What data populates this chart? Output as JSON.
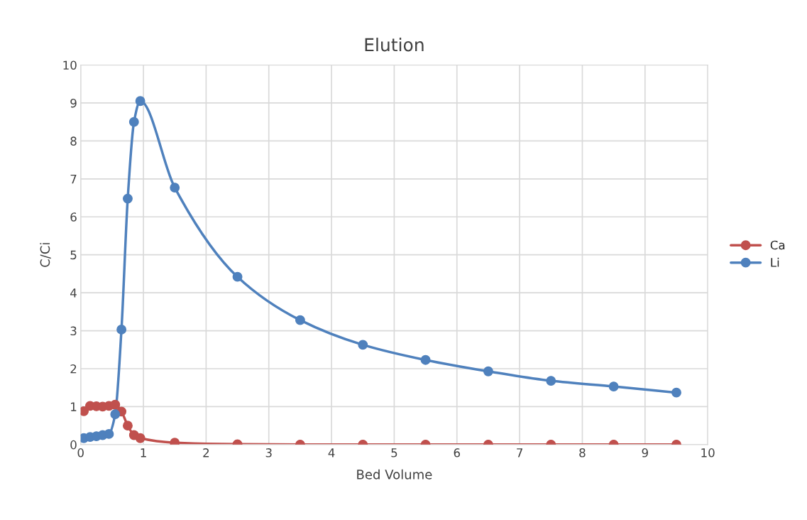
{
  "chart_data": {
    "type": "line",
    "title": "Elution",
    "xlabel": "Bed Volume",
    "ylabel": "C/Ci",
    "x": [
      0.05,
      0.15,
      0.25,
      0.35,
      0.45,
      0.55,
      0.65,
      0.75,
      0.85,
      0.95,
      1.5,
      2.5,
      3.5,
      4.5,
      5.5,
      6.5,
      7.5,
      8.5,
      9.5
    ],
    "series": [
      {
        "name": "Ca",
        "color": "#c0504d",
        "values": [
          0.88,
          1.02,
          1.01,
          1.0,
          1.02,
          1.05,
          0.87,
          0.5,
          0.25,
          0.17,
          0.05,
          0.01,
          0,
          0,
          0,
          0,
          0,
          0,
          0
        ]
      },
      {
        "name": "Li",
        "color": "#4f81bd",
        "values": [
          0.17,
          0.2,
          0.22,
          0.25,
          0.28,
          0.8,
          3.03,
          6.48,
          8.5,
          9.05,
          6.77,
          4.42,
          3.28,
          2.63,
          2.23,
          1.93,
          1.68,
          1.53,
          1.37
        ]
      }
    ],
    "xlim": [
      0,
      10
    ],
    "xticks": [
      0,
      1,
      2,
      3,
      4,
      5,
      6,
      7,
      8,
      9,
      10
    ],
    "ylim": [
      0,
      10
    ],
    "yticks": [
      0,
      1,
      2,
      3,
      4,
      5,
      6,
      7,
      8,
      9,
      10
    ],
    "grid": true,
    "legend": "right",
    "marker": "circle",
    "line_style": "solid"
  }
}
